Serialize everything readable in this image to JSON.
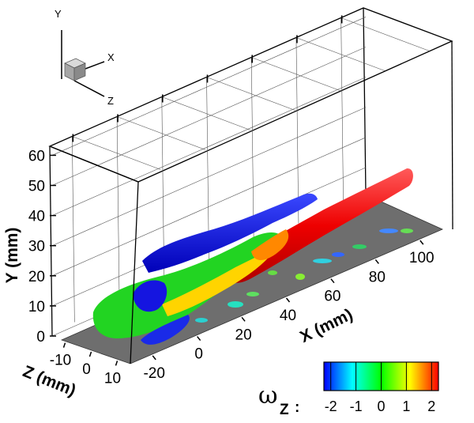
{
  "chart_data": {
    "type": "3d-isosurface",
    "axes": {
      "x": {
        "label": "X (mm)",
        "ticks": [
          -20,
          0,
          20,
          40,
          60,
          80,
          100
        ],
        "range": [
          -30,
          110
        ]
      },
      "y": {
        "label": "Y (mm)",
        "ticks": [
          0,
          10,
          20,
          30,
          40,
          50,
          60
        ],
        "range": [
          0,
          63
        ]
      },
      "z": {
        "label": "Z (mm)",
        "ticks": [
          -10,
          0,
          10
        ],
        "range": [
          -15,
          15
        ]
      }
    },
    "triad": {
      "x": "X",
      "y": "Y",
      "z": "Z"
    },
    "colorbar": {
      "variable_symbol": "ω",
      "variable_subscript": "Z",
      "separator": ":",
      "ticks": [
        -2,
        -1,
        0,
        1,
        2
      ],
      "range": [
        -2,
        2
      ],
      "colormap": [
        "#0000ff",
        "#00ffff",
        "#00ff00",
        "#ffff00",
        "#ff0000"
      ]
    },
    "floor_color": "#6e6e6e",
    "grid": true
  }
}
